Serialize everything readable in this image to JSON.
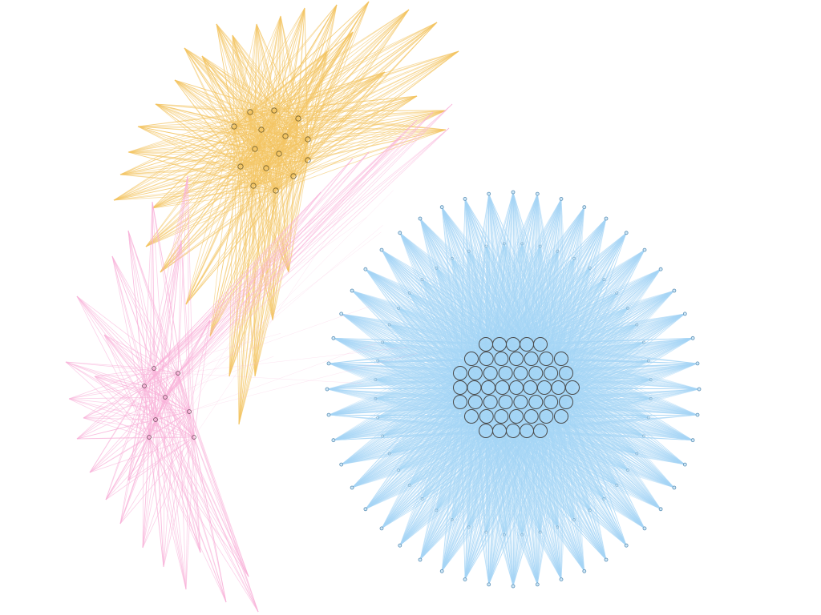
{
  "diagram": {
    "type": "network-graph",
    "background": "#ffffff",
    "clusters": [
      {
        "name": "yellow",
        "edge_color": "#f4c563",
        "hub_count": 15,
        "peripheral_count": 34
      },
      {
        "name": "pink",
        "edge_color": "#f9b1d8",
        "hub_count": 8,
        "peripheral_count": 24
      },
      {
        "name": "blue",
        "edge_color": "#a6d6f5",
        "hub_count": 45,
        "peripheral_count": 96
      }
    ],
    "node_stroke_color": "#555555",
    "node_fill": "none"
  }
}
